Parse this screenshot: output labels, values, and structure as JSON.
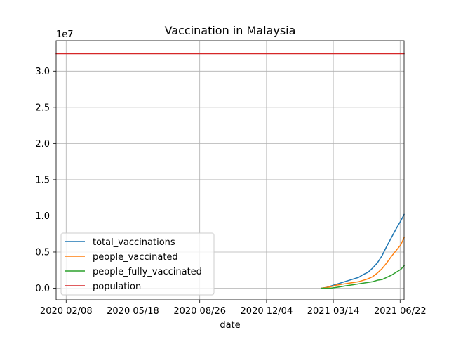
{
  "chart_data": {
    "type": "line",
    "title": "Vaccination in Malaysia",
    "xlabel": "date",
    "ylabel": "",
    "y_offset_label": "1e7",
    "x_ticks": [
      "2020 02/08",
      "2020 05/18",
      "2020 08/26",
      "2020 12/04",
      "2021 03/14",
      "2021 06/22"
    ],
    "x_tick_dates": [
      "2020-02-08",
      "2020-05-18",
      "2020-08-26",
      "2020-12-04",
      "2021-03-14",
      "2021-06-22"
    ],
    "xlim": [
      "2020-01-24",
      "2021-06-28"
    ],
    "y_ticks": [
      "0.0",
      "0.5",
      "1.0",
      "1.5",
      "2.0",
      "2.5",
      "3.0"
    ],
    "y_tick_values": [
      0,
      0.5,
      1.0,
      1.5,
      2.0,
      2.5,
      3.0
    ],
    "ylim": [
      -0.16,
      3.42
    ],
    "y_unit_multiplier": 10000000,
    "grid": true,
    "legend_position": "lower-left",
    "series": [
      {
        "name": "total_vaccinations",
        "color": "#1f77b4",
        "x": [
          "2021-02-24",
          "2021-03-03",
          "2021-03-10",
          "2021-03-17",
          "2021-03-24",
          "2021-03-31",
          "2021-04-07",
          "2021-04-14",
          "2021-04-21",
          "2021-04-28",
          "2021-05-05",
          "2021-05-12",
          "2021-05-19",
          "2021-05-26",
          "2021-06-02",
          "2021-06-09",
          "2021-06-16",
          "2021-06-23",
          "2021-06-28"
        ],
        "values": [
          0.0,
          0.01,
          0.03,
          0.05,
          0.07,
          0.09,
          0.11,
          0.13,
          0.15,
          0.19,
          0.22,
          0.28,
          0.35,
          0.45,
          0.58,
          0.7,
          0.82,
          0.93,
          1.02
        ]
      },
      {
        "name": "people_vaccinated",
        "color": "#ff7f0e",
        "x": [
          "2021-02-24",
          "2021-03-03",
          "2021-03-10",
          "2021-03-17",
          "2021-03-24",
          "2021-03-31",
          "2021-04-07",
          "2021-04-14",
          "2021-04-21",
          "2021-04-28",
          "2021-05-05",
          "2021-05-12",
          "2021-05-19",
          "2021-05-26",
          "2021-06-02",
          "2021-06-09",
          "2021-06-16",
          "2021-06-23",
          "2021-06-28"
        ],
        "values": [
          0.0,
          0.01,
          0.02,
          0.04,
          0.05,
          0.06,
          0.07,
          0.08,
          0.09,
          0.11,
          0.13,
          0.16,
          0.21,
          0.27,
          0.35,
          0.44,
          0.52,
          0.6,
          0.7
        ]
      },
      {
        "name": "people_fully_vaccinated",
        "color": "#2ca02c",
        "x": [
          "2021-02-24",
          "2021-03-03",
          "2021-03-10",
          "2021-03-17",
          "2021-03-24",
          "2021-03-31",
          "2021-04-07",
          "2021-04-14",
          "2021-04-21",
          "2021-04-28",
          "2021-05-05",
          "2021-05-12",
          "2021-05-19",
          "2021-05-26",
          "2021-06-02",
          "2021-06-09",
          "2021-06-16",
          "2021-06-23",
          "2021-06-28"
        ],
        "values": [
          0.0,
          0.0,
          0.0,
          0.01,
          0.02,
          0.03,
          0.04,
          0.05,
          0.06,
          0.07,
          0.08,
          0.09,
          0.11,
          0.12,
          0.15,
          0.18,
          0.22,
          0.26,
          0.31
        ]
      },
      {
        "name": "population",
        "color": "#d62728",
        "x": [
          "2020-01-24",
          "2021-06-28"
        ],
        "values": [
          3.24,
          3.24
        ]
      }
    ]
  }
}
